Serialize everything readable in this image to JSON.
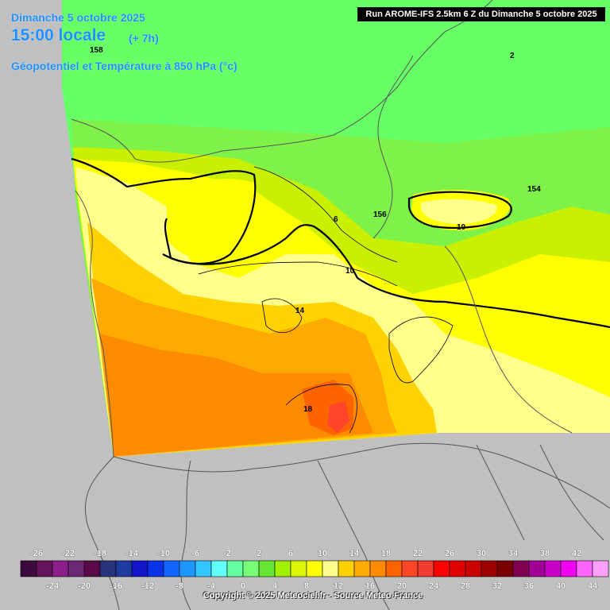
{
  "header": {
    "date": "Dimanche 5 octobre 2025",
    "time": "15:00 locale",
    "offset": "(+ 7h)",
    "variable": "Géopotentiel et Température à 850 hPa (°c)",
    "run": "Run AROME-IFS 2.5km 6 Z du Dimanche 5 octobre 2025"
  },
  "contour_labels": [
    "158",
    "2",
    "154",
    "156",
    "6",
    "10",
    "10",
    "14",
    "18"
  ],
  "legend": {
    "top_labels": [
      "-26",
      "-22",
      "-18",
      "-14",
      "-10",
      "-6",
      "-2",
      "2",
      "6",
      "10",
      "14",
      "18",
      "22",
      "26",
      "30",
      "34",
      "38",
      "42"
    ],
    "bottom_labels": [
      "-24",
      "-20",
      "-16",
      "-12",
      "-8",
      "-4",
      "0",
      "4",
      "8",
      "12",
      "16",
      "20",
      "24",
      "28",
      "32",
      "36",
      "40",
      "44"
    ],
    "colors": [
      "#3c0a3c",
      "#64145a",
      "#8c1e8c",
      "#6e2878",
      "#5a0a46",
      "#28327d",
      "#1e3ca0",
      "#1414c8",
      "#0a32e6",
      "#1464ff",
      "#1e96ff",
      "#32c8ff",
      "#64ffff",
      "#64ffa0",
      "#78ff78",
      "#64e632",
      "#a0f000",
      "#dcf500",
      "#ffff00",
      "#ffff8c",
      "#ffd200",
      "#ffaa00",
      "#ff8c00",
      "#ff6400",
      "#ff4628",
      "#f03c32",
      "#ff0000",
      "#e10000",
      "#c80000",
      "#a00000",
      "#780000",
      "#820050",
      "#a00096",
      "#c800c8",
      "#f000f0",
      "#ff64ff",
      "#ffa0ff"
    ]
  },
  "copyright": "Copyright © 2025 Meteociel.fr - Source Meteo-France",
  "colors": {
    "header_text": "#1e90ff",
    "background": "#c0c0c0"
  }
}
